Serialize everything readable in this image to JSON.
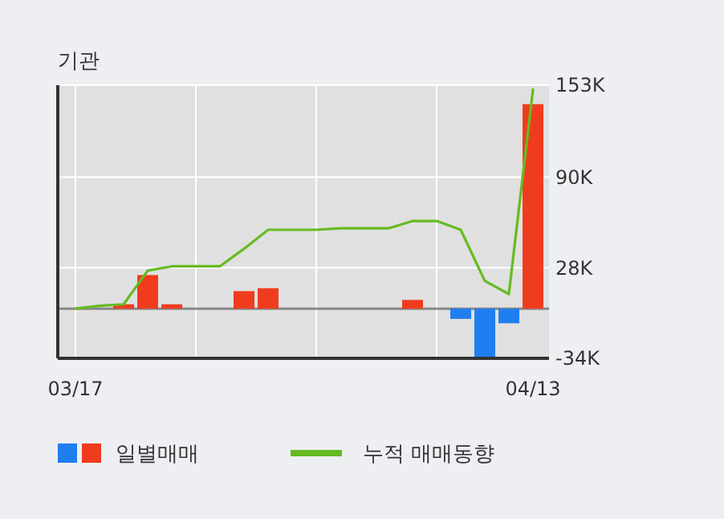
{
  "chart_data": {
    "type": "bar",
    "title": "기관",
    "categories": [
      "03/17",
      null,
      null,
      null,
      null,
      null,
      null,
      null,
      null,
      null,
      null,
      null,
      null,
      null,
      null,
      null,
      null,
      null,
      null,
      "04/13"
    ],
    "series": [
      {
        "name": "일별매매",
        "values": [
          0,
          0,
          3000,
          23000,
          3000,
          0,
          0,
          12000,
          14000,
          0,
          0,
          0,
          0,
          0,
          6000,
          0,
          -7000,
          -34000,
          -10000,
          140000
        ],
        "colors": [
          "#f03c1e",
          "#f03c1e",
          "#f03c1e",
          "#f03c1e",
          "#f03c1e",
          "#f03c1e",
          "#f03c1e",
          "#f03c1e",
          "#f03c1e",
          "#f03c1e",
          "#f03c1e",
          "#f03c1e",
          "#f03c1e",
          "#f03c1e",
          "#f03c1e",
          "#f03c1e",
          "#1f7ff0",
          "#1f7ff0",
          "#1f7ff0",
          "#f03c1e"
        ]
      },
      {
        "name": "누적 매매동향",
        "type": "line",
        "color": "#66bb22",
        "values": [
          0,
          2000,
          3000,
          26000,
          29000,
          29000,
          29000,
          41000,
          54000,
          54000,
          54000,
          55000,
          55000,
          55000,
          60000,
          60000,
          54000,
          19000,
          10000,
          150000
        ]
      }
    ],
    "ylim": [
      -34000,
      153000
    ],
    "yticks": [
      {
        "value": 153000,
        "label": "153K"
      },
      {
        "value": 90000,
        "label": "90K"
      },
      {
        "value": 28000,
        "label": "28K"
      },
      {
        "value": -34000,
        "label": "-34K"
      }
    ],
    "grid": true,
    "legend": "bottom"
  }
}
